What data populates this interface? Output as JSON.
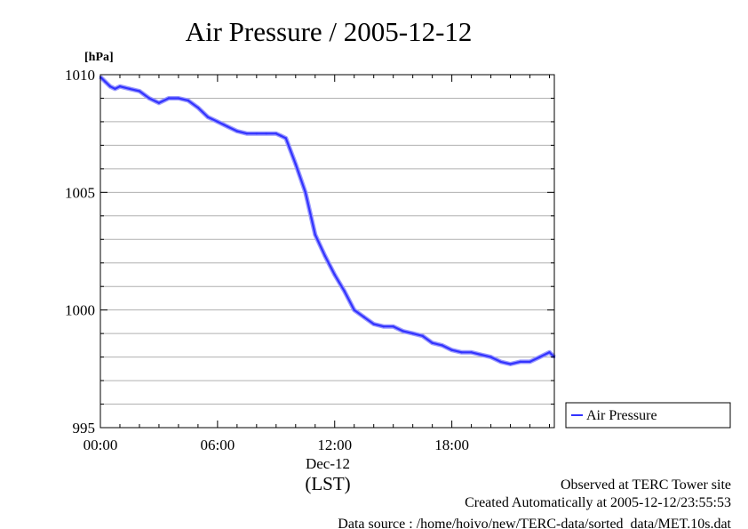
{
  "chart_data": {
    "type": "line",
    "title": "Air Pressure / 2005-12-12",
    "ylabel": "[hPa]",
    "xlabel_date": "Dec-12",
    "xlabel_unit": "(LST)",
    "ylim": [
      995,
      1010
    ],
    "xlim": [
      0,
      23.25
    ],
    "y_ticks": [
      995,
      1000,
      1005,
      1010
    ],
    "y_minor_step": 1,
    "x_ticks": [
      {
        "value": 0,
        "label": "00:00"
      },
      {
        "value": 6,
        "label": "06:00"
      },
      {
        "value": 12,
        "label": "12:00"
      },
      {
        "value": 18,
        "label": "18:00"
      }
    ],
    "grid": true,
    "legend": "outside-right",
    "series": [
      {
        "name": "Air Pressure",
        "color": "#3333ff",
        "x": [
          0,
          0.25,
          0.5,
          0.75,
          1,
          1.5,
          2,
          2.5,
          3,
          3.5,
          4,
          4.5,
          5,
          5.5,
          6,
          6.5,
          7,
          7.5,
          8,
          8.5,
          9,
          9.25,
          9.5,
          10,
          10.5,
          11,
          11.5,
          12,
          12.5,
          13,
          13.5,
          14,
          14.5,
          15,
          15.5,
          16,
          16.5,
          17,
          17.5,
          18,
          18.5,
          19,
          19.5,
          20,
          20.5,
          21,
          21.5,
          22,
          22.5,
          23,
          23.25
        ],
        "y": [
          1009.9,
          1009.7,
          1009.5,
          1009.4,
          1009.5,
          1009.4,
          1009.3,
          1009.0,
          1008.8,
          1009.0,
          1009.0,
          1008.9,
          1008.6,
          1008.2,
          1008.0,
          1007.8,
          1007.6,
          1007.5,
          1007.5,
          1007.5,
          1007.5,
          1007.4,
          1007.3,
          1006.2,
          1005.0,
          1003.2,
          1002.3,
          1001.5,
          1000.8,
          1000.0,
          999.7,
          999.4,
          999.3,
          999.3,
          999.1,
          999.0,
          998.9,
          998.6,
          998.5,
          998.3,
          998.2,
          998.2,
          998.1,
          998.0,
          997.8,
          997.7,
          997.8,
          997.8,
          998.0,
          998.2,
          998.0
        ]
      }
    ]
  },
  "legend_label": "Air Pressure",
  "footer": {
    "line1": "Observed at TERC Tower site",
    "line2": "Created Automatically at 2005-12-12/23:55:53",
    "line3": "Data source : /home/hoivo/new/TERC-data/sorted_data/MET.10s.dat"
  }
}
